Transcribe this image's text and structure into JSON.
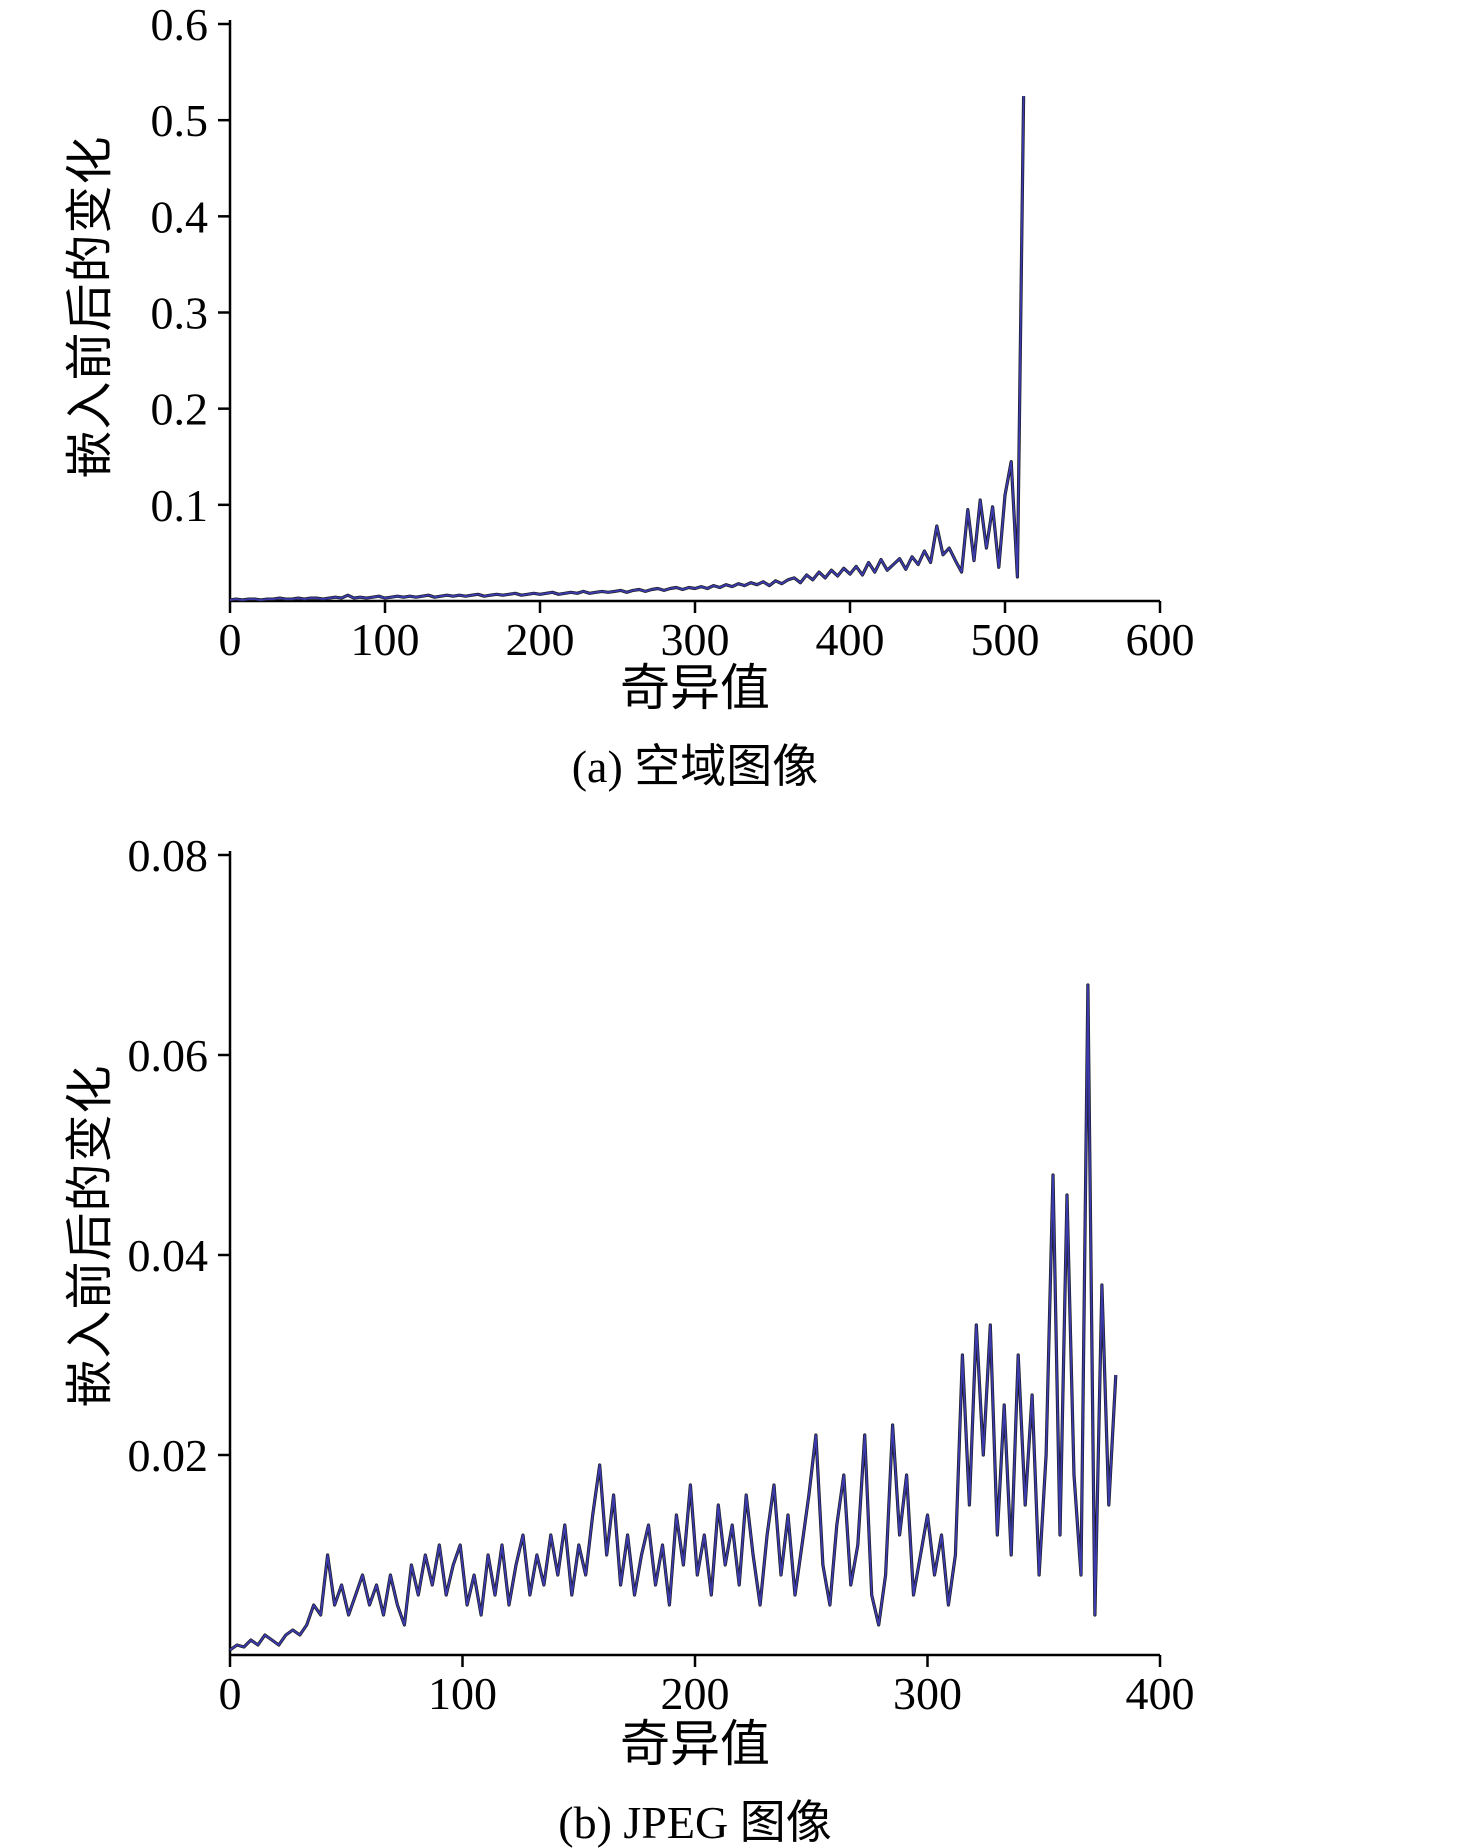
{
  "chart_data": [
    {
      "type": "line",
      "title": "(a) 空域图像",
      "xlabel": "奇异值",
      "ylabel": "嵌入前后的变化",
      "xlim": [
        0,
        600
      ],
      "ylim": [
        0,
        0.6
      ],
      "xticks": [
        0,
        100,
        200,
        300,
        400,
        500,
        600
      ],
      "xtick_labels": [
        "0",
        "100",
        "200",
        "300",
        "400",
        "500",
        "600"
      ],
      "yticks": [
        0.1,
        0.2,
        0.3,
        0.4,
        0.5,
        0.6
      ],
      "ytick_labels": [
        "0.1",
        "0.2",
        "0.3",
        "0.4",
        "0.5",
        "0.6"
      ],
      "grid": false,
      "legend": "none",
      "line_colors": [
        "#1c1c1c",
        "#3b3bae"
      ],
      "x_start": 0,
      "x_step": 4,
      "values": [
        0.001,
        0.002,
        0.001,
        0.002,
        0.002,
        0.001,
        0.002,
        0.002,
        0.003,
        0.002,
        0.002,
        0.003,
        0.002,
        0.003,
        0.003,
        0.002,
        0.003,
        0.004,
        0.003,
        0.006,
        0.003,
        0.004,
        0.003,
        0.004,
        0.005,
        0.003,
        0.004,
        0.005,
        0.004,
        0.005,
        0.004,
        0.005,
        0.006,
        0.004,
        0.005,
        0.006,
        0.005,
        0.006,
        0.005,
        0.006,
        0.007,
        0.005,
        0.006,
        0.007,
        0.006,
        0.007,
        0.008,
        0.006,
        0.007,
        0.008,
        0.007,
        0.008,
        0.009,
        0.007,
        0.008,
        0.009,
        0.008,
        0.01,
        0.008,
        0.009,
        0.01,
        0.009,
        0.01,
        0.011,
        0.009,
        0.011,
        0.012,
        0.01,
        0.012,
        0.013,
        0.011,
        0.013,
        0.014,
        0.012,
        0.014,
        0.013,
        0.015,
        0.013,
        0.016,
        0.014,
        0.017,
        0.015,
        0.018,
        0.016,
        0.019,
        0.017,
        0.02,
        0.016,
        0.021,
        0.018,
        0.022,
        0.024,
        0.019,
        0.027,
        0.022,
        0.03,
        0.024,
        0.032,
        0.026,
        0.034,
        0.028,
        0.036,
        0.027,
        0.04,
        0.03,
        0.043,
        0.032,
        0.038,
        0.044,
        0.033,
        0.046,
        0.038,
        0.052,
        0.04,
        0.078,
        0.048,
        0.055,
        0.042,
        0.03,
        0.095,
        0.042,
        0.105,
        0.055,
        0.098,
        0.035,
        0.11,
        0.145,
        0.025,
        0.525
      ]
    },
    {
      "type": "line",
      "title": "(b) JPEG 图像",
      "xlabel": "奇异值",
      "ylabel": "嵌入前后的变化",
      "xlim": [
        0,
        400
      ],
      "ylim": [
        0,
        0.08
      ],
      "xticks": [
        0,
        100,
        200,
        300,
        400
      ],
      "xtick_labels": [
        "0",
        "100",
        "200",
        "300",
        "400"
      ],
      "yticks": [
        0.02,
        0.04,
        0.06,
        0.08
      ],
      "ytick_labels": [
        "0.02",
        "0.04",
        "0.06",
        "0.08"
      ],
      "grid": false,
      "legend": "none",
      "line_colors": [
        "#1c1c1c",
        "#3b3bae"
      ],
      "x_start": 0,
      "x_step": 3,
      "values": [
        0.0005,
        0.001,
        0.0008,
        0.0015,
        0.001,
        0.002,
        0.0015,
        0.001,
        0.002,
        0.0025,
        0.002,
        0.003,
        0.005,
        0.004,
        0.01,
        0.005,
        0.007,
        0.004,
        0.006,
        0.008,
        0.005,
        0.007,
        0.004,
        0.008,
        0.005,
        0.003,
        0.009,
        0.006,
        0.01,
        0.007,
        0.011,
        0.006,
        0.009,
        0.011,
        0.005,
        0.008,
        0.004,
        0.01,
        0.006,
        0.011,
        0.005,
        0.009,
        0.012,
        0.006,
        0.01,
        0.007,
        0.012,
        0.008,
        0.013,
        0.006,
        0.011,
        0.008,
        0.014,
        0.019,
        0.01,
        0.016,
        0.007,
        0.012,
        0.006,
        0.01,
        0.013,
        0.007,
        0.011,
        0.005,
        0.014,
        0.009,
        0.017,
        0.008,
        0.012,
        0.006,
        0.015,
        0.009,
        0.013,
        0.007,
        0.016,
        0.01,
        0.005,
        0.012,
        0.017,
        0.008,
        0.014,
        0.006,
        0.011,
        0.016,
        0.022,
        0.009,
        0.005,
        0.013,
        0.018,
        0.007,
        0.011,
        0.022,
        0.006,
        0.003,
        0.008,
        0.023,
        0.012,
        0.018,
        0.006,
        0.01,
        0.014,
        0.008,
        0.012,
        0.005,
        0.01,
        0.03,
        0.015,
        0.033,
        0.02,
        0.033,
        0.012,
        0.025,
        0.01,
        0.03,
        0.015,
        0.026,
        0.008,
        0.02,
        0.048,
        0.012,
        0.046,
        0.018,
        0.008,
        0.067,
        0.004,
        0.037,
        0.015,
        0.028
      ]
    }
  ]
}
